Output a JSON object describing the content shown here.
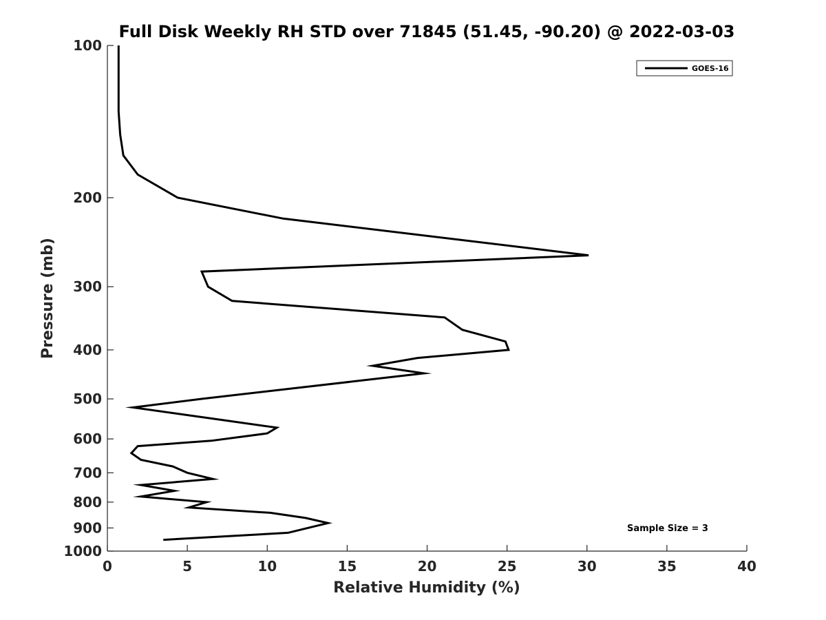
{
  "chart_data": {
    "type": "line",
    "title": "Full Disk Weekly RH STD over 71845 (51.45, -90.20) @ 2022-03-03",
    "xlabel": "Relative Humidity (%)",
    "ylabel": "Pressure (mb)",
    "xlim": [
      0,
      40
    ],
    "ylim": [
      100,
      1000
    ],
    "yscale": "log",
    "y_reversed": true,
    "xticks": [
      0,
      5,
      10,
      15,
      20,
      25,
      30,
      35,
      40
    ],
    "xtick_labels": [
      "0",
      "5",
      "10",
      "15",
      "20",
      "25",
      "30",
      "35",
      "40"
    ],
    "yticks": [
      100,
      200,
      300,
      400,
      500,
      600,
      700,
      800,
      900,
      1000
    ],
    "ytick_labels": [
      "100",
      "200",
      "300",
      "400",
      "500",
      "600",
      "700",
      "800",
      "900",
      "1000"
    ],
    "grid": false,
    "legend_position": "top-right",
    "series": [
      {
        "name": "GOES-16",
        "color": "#000000",
        "x": [
          0.7,
          0.7,
          0.7,
          0.8,
          1.0,
          1.9,
          4.4,
          11.0,
          30.1,
          5.9,
          6.3,
          7.8,
          21.1,
          22.2,
          24.9,
          25.1,
          19.4,
          16.6,
          19.8,
          5.9,
          1.6,
          7.1,
          10.6,
          10.0,
          6.5,
          1.9,
          1.5,
          2.1,
          4.1,
          5.0,
          6.6,
          2.1,
          4.2,
          2.1,
          6.2,
          5.1,
          10.2,
          12.4,
          13.8,
          11.3,
          3.5
        ],
        "y": [
          100,
          115,
          135,
          150,
          165,
          180,
          200,
          220,
          260,
          280,
          300,
          320,
          345,
          365,
          385,
          400,
          415,
          430,
          445,
          500,
          520,
          550,
          570,
          585,
          605,
          620,
          640,
          660,
          680,
          700,
          720,
          740,
          760,
          780,
          800,
          820,
          840,
          860,
          880,
          920,
          950
        ]
      }
    ],
    "annotations": [
      "Sample Size = 3"
    ]
  }
}
